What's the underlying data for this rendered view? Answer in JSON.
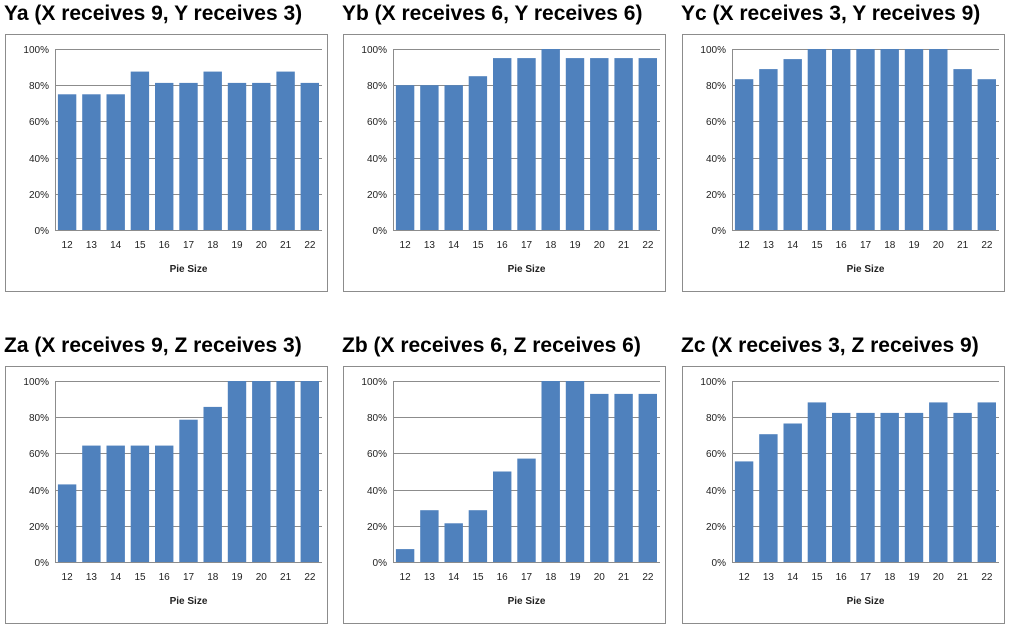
{
  "colors": {
    "bar": "#4f81bd",
    "grid": "#8c8c8c",
    "axis": "#8c8c8c"
  },
  "chart_data": [
    {
      "type": "bar",
      "title": "Ya (X receives 9, Y receives 3)",
      "xlabel": "Pie Size",
      "ylabel": "",
      "categories": [
        "12",
        "13",
        "14",
        "15",
        "16",
        "17",
        "18",
        "19",
        "20",
        "21",
        "22"
      ],
      "values": [
        75,
        75,
        75,
        87.5,
        81.25,
        81.25,
        87.5,
        81.25,
        81.25,
        87.5,
        81.25
      ],
      "ylim": [
        0,
        100
      ],
      "yticks": [
        "0%",
        "20%",
        "40%",
        "60%",
        "80%",
        "100%"
      ],
      "grid": true
    },
    {
      "type": "bar",
      "title": "Yb (X receives 6, Y receives 6)",
      "xlabel": "Pie Size",
      "ylabel": "",
      "categories": [
        "12",
        "13",
        "14",
        "15",
        "16",
        "17",
        "18",
        "19",
        "20",
        "21",
        "22"
      ],
      "values": [
        80,
        80,
        80,
        85,
        95,
        95,
        100,
        95,
        95,
        95,
        95
      ],
      "ylim": [
        0,
        100
      ],
      "yticks": [
        "0%",
        "20%",
        "40%",
        "60%",
        "80%",
        "100%"
      ],
      "grid": true
    },
    {
      "type": "bar",
      "title": "Yc (X receives 3, Y receives 9)",
      "xlabel": "Pie Size",
      "ylabel": "",
      "categories": [
        "12",
        "13",
        "14",
        "15",
        "16",
        "17",
        "18",
        "19",
        "20",
        "21",
        "22"
      ],
      "values": [
        83.3,
        88.9,
        94.4,
        100,
        100,
        100,
        100,
        100,
        100,
        88.9,
        83.3
      ],
      "ylim": [
        0,
        100
      ],
      "yticks": [
        "0%",
        "20%",
        "40%",
        "60%",
        "80%",
        "100%"
      ],
      "grid": true
    },
    {
      "type": "bar",
      "title": "Za (X receives 9, Z receives 3)",
      "xlabel": "Pie Size",
      "ylabel": "",
      "categories": [
        "12",
        "13",
        "14",
        "15",
        "16",
        "17",
        "18",
        "19",
        "20",
        "21",
        "22"
      ],
      "values": [
        42.9,
        64.3,
        64.3,
        64.3,
        64.3,
        78.6,
        85.7,
        100,
        100,
        100,
        100
      ],
      "ylim": [
        0,
        100
      ],
      "yticks": [
        "0%",
        "20%",
        "40%",
        "60%",
        "80%",
        "100%"
      ],
      "grid": true
    },
    {
      "type": "bar",
      "title": "Zb (X receives 6, Z receives 6)",
      "xlabel": "Pie Size",
      "ylabel": "",
      "categories": [
        "12",
        "13",
        "14",
        "15",
        "16",
        "17",
        "18",
        "19",
        "20",
        "21",
        "22"
      ],
      "values": [
        7.1,
        28.6,
        21.4,
        28.6,
        50,
        57.1,
        100,
        100,
        92.9,
        92.9,
        92.9
      ],
      "ylim": [
        0,
        100
      ],
      "yticks": [
        "0%",
        "20%",
        "40%",
        "60%",
        "80%",
        "100%"
      ],
      "grid": true
    },
    {
      "type": "bar",
      "title": "Zc (X receives 3, Z receives 9)",
      "xlabel": "Pie Size",
      "ylabel": "",
      "categories": [
        "12",
        "13",
        "14",
        "15",
        "16",
        "17",
        "18",
        "19",
        "20",
        "21",
        "22"
      ],
      "values": [
        55.6,
        70.6,
        76.5,
        88.2,
        82.4,
        82.4,
        82.4,
        82.4,
        88.2,
        82.4,
        88.2
      ],
      "ylim": [
        0,
        100
      ],
      "yticks": [
        "0%",
        "20%",
        "40%",
        "60%",
        "80%",
        "100%"
      ],
      "grid": true
    }
  ]
}
